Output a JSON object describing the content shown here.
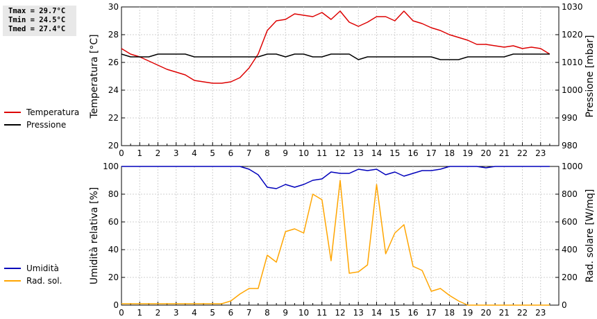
{
  "stats": {
    "tmax": "Tmax = 29.7°C",
    "tmin": "Tmin = 24.5°C",
    "tmed": "Tmed = 27.4°C"
  },
  "colors": {
    "temperature": "#dd0000",
    "pressure": "#000000",
    "humidity": "#0000bb",
    "radiation": "#ffa500"
  },
  "chart_data": [
    {
      "type": "line",
      "title": "",
      "xlabel": "",
      "ylabel": "Temperatura [°C]",
      "ylabel_right": "Pressione [mbar]",
      "xlim": [
        0,
        24
      ],
      "ylim": [
        20,
        30
      ],
      "ylim_right": [
        980,
        1030
      ],
      "x_ticks": [
        "0",
        "1",
        "2",
        "3",
        "4",
        "5",
        "6",
        "7",
        "8",
        "9",
        "10",
        "11",
        "12",
        "13",
        "14",
        "15",
        "16",
        "17",
        "18",
        "19",
        "20",
        "21",
        "22",
        "23"
      ],
      "y_ticks": [
        "20",
        "22",
        "24",
        "26",
        "28",
        "30"
      ],
      "y_ticks_right": [
        "980",
        "990",
        "1000",
        "1010",
        "1020",
        "1030"
      ],
      "grid": true,
      "legend_position": "left",
      "series": [
        {
          "name": "Temperatura",
          "axis": "left",
          "x": [
            0,
            0.5,
            1,
            1.5,
            2,
            2.5,
            3,
            3.5,
            4,
            4.5,
            5,
            5.5,
            6,
            6.5,
            7,
            7.5,
            8,
            8.5,
            9,
            9.5,
            10,
            10.5,
            11,
            11.5,
            12,
            12.5,
            13,
            13.5,
            14,
            14.5,
            15,
            15.5,
            16,
            16.5,
            17,
            17.5,
            18,
            18.5,
            19,
            19.5,
            20,
            20.5,
            21,
            21.5,
            22,
            22.5,
            23,
            23.5
          ],
          "values": [
            27.0,
            26.6,
            26.4,
            26.1,
            25.8,
            25.5,
            25.3,
            25.1,
            24.7,
            24.6,
            24.5,
            24.5,
            24.6,
            24.9,
            25.6,
            26.6,
            28.3,
            29.0,
            29.1,
            29.5,
            29.4,
            29.3,
            29.6,
            29.1,
            29.7,
            28.9,
            28.6,
            28.9,
            29.3,
            29.3,
            29.0,
            29.7,
            29.0,
            28.8,
            28.5,
            28.3,
            28.0,
            27.8,
            27.6,
            27.3,
            27.3,
            27.2,
            27.1,
            27.2,
            27.0,
            27.1,
            27.0,
            26.6
          ]
        },
        {
          "name": "Pressione",
          "axis": "right",
          "x": [
            0,
            0.5,
            1,
            1.5,
            2,
            2.5,
            3,
            3.5,
            4,
            4.5,
            5,
            5.5,
            6,
            6.5,
            7,
            7.5,
            8,
            8.5,
            9,
            9.5,
            10,
            10.5,
            11,
            11.5,
            12,
            12.5,
            13,
            13.5,
            14,
            14.5,
            15,
            15.5,
            16,
            16.5,
            17,
            17.5,
            18,
            18.5,
            19,
            19.5,
            20,
            20.5,
            21,
            21.5,
            22,
            22.5,
            23,
            23.5
          ],
          "values": [
            1013,
            1012,
            1012,
            1012,
            1013,
            1013,
            1013,
            1013,
            1012,
            1012,
            1012,
            1012,
            1012,
            1012,
            1012,
            1012,
            1013,
            1013,
            1012,
            1013,
            1013,
            1012,
            1012,
            1013,
            1013,
            1013,
            1011,
            1012,
            1012,
            1012,
            1012,
            1012,
            1012,
            1012,
            1012,
            1011,
            1011,
            1011,
            1012,
            1012,
            1012,
            1012,
            1012,
            1013,
            1013,
            1013,
            1013,
            1013
          ]
        }
      ]
    },
    {
      "type": "line",
      "title": "",
      "xlabel": "",
      "ylabel": "Umidità relativa [%]",
      "ylabel_right": "Rad. solare [W/mq]",
      "xlim": [
        0,
        24
      ],
      "ylim": [
        0,
        100
      ],
      "ylim_right": [
        0,
        1000
      ],
      "x_ticks": [
        "0",
        "1",
        "2",
        "3",
        "4",
        "5",
        "6",
        "7",
        "8",
        "9",
        "10",
        "11",
        "12",
        "13",
        "14",
        "15",
        "16",
        "17",
        "18",
        "19",
        "20",
        "21",
        "22",
        "23"
      ],
      "y_ticks": [
        "0",
        "20",
        "40",
        "60",
        "80",
        "100"
      ],
      "y_ticks_right": [
        "0",
        "200",
        "400",
        "600",
        "800",
        "1000"
      ],
      "grid": true,
      "legend_position": "left",
      "series": [
        {
          "name": "Umidità",
          "axis": "left",
          "x": [
            0,
            0.5,
            1,
            1.5,
            2,
            2.5,
            3,
            3.5,
            4,
            4.5,
            5,
            5.5,
            6,
            6.5,
            7,
            7.5,
            8,
            8.5,
            9,
            9.5,
            10,
            10.5,
            11,
            11.5,
            12,
            12.5,
            13,
            13.5,
            14,
            14.5,
            15,
            15.5,
            16,
            16.5,
            17,
            17.5,
            18,
            18.5,
            19,
            19.5,
            20,
            20.5,
            21,
            21.5,
            22,
            22.5,
            23,
            23.5
          ],
          "values": [
            100,
            100,
            100,
            100,
            100,
            100,
            100,
            100,
            100,
            100,
            100,
            100,
            100,
            100,
            98,
            94,
            85,
            84,
            87,
            85,
            87,
            90,
            91,
            96,
            95,
            95,
            98,
            97,
            98,
            94,
            96,
            93,
            95,
            97,
            97,
            98,
            100,
            100,
            100,
            100,
            99,
            100,
            100,
            100,
            100,
            100,
            100,
            100
          ]
        },
        {
          "name": "Rad. sol.",
          "axis": "right",
          "x": [
            0,
            0.5,
            1,
            1.5,
            2,
            2.5,
            3,
            3.5,
            4,
            4.5,
            5,
            5.5,
            6,
            6.5,
            7,
            7.5,
            8,
            8.5,
            9,
            9.5,
            10,
            10.5,
            11,
            11.5,
            12,
            12.5,
            13,
            13.5,
            14,
            14.5,
            15,
            15.5,
            16,
            16.5,
            17,
            17.5,
            18,
            18.5,
            19,
            19.5,
            20,
            20.5,
            21,
            21.5,
            22,
            22.5,
            23,
            23.5
          ],
          "values": [
            10,
            10,
            10,
            10,
            10,
            10,
            10,
            10,
            10,
            10,
            10,
            10,
            30,
            80,
            120,
            120,
            360,
            310,
            530,
            550,
            520,
            800,
            760,
            320,
            900,
            230,
            240,
            290,
            870,
            370,
            520,
            580,
            280,
            250,
            100,
            120,
            70,
            30,
            0,
            0,
            0,
            0,
            0,
            0,
            0,
            0,
            0,
            0
          ]
        }
      ]
    }
  ]
}
